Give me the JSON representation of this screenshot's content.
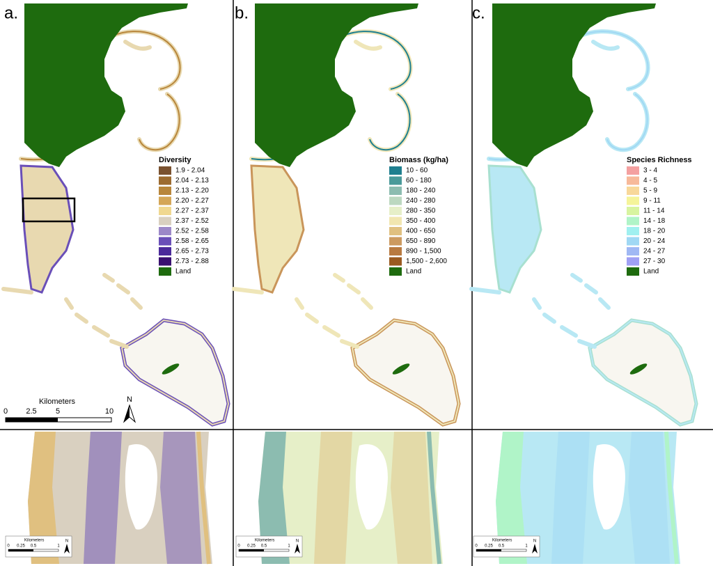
{
  "panels": [
    {
      "label": "a.",
      "legend": {
        "title": "Diversity",
        "items": [
          {
            "label": "1.9 - 2.04",
            "color": "#7a5230"
          },
          {
            "label": "2.04 - 2.13",
            "color": "#9c6b30"
          },
          {
            "label": "2.13 - 2.20",
            "color": "#b8863b"
          },
          {
            "label": "2.20 - 2.27",
            "color": "#d4a657"
          },
          {
            "label": "2.27 - 2.37",
            "color": "#f0d890"
          },
          {
            "label": "2.37 - 2.52",
            "color": "#d9d0c0"
          },
          {
            "label": "2.52 - 2.58",
            "color": "#9c88c8"
          },
          {
            "label": "2.58 - 2.65",
            "color": "#6a4fb8"
          },
          {
            "label": "2.65 - 2.73",
            "color": "#4b2a9a"
          },
          {
            "label": "2.73 - 2.88",
            "color": "#3a1070"
          },
          {
            "label": "Land",
            "color": "#1e6b0e"
          }
        ]
      }
    },
    {
      "label": "b.",
      "legend": {
        "title": "Biomass (kg/ha)",
        "items": [
          {
            "label": "10 - 60",
            "color": "#1f7f8f"
          },
          {
            "label": "60 - 180",
            "color": "#4a9a9a"
          },
          {
            "label": "180 - 240",
            "color": "#8cbcb0"
          },
          {
            "label": "240 - 280",
            "color": "#bcd8c0"
          },
          {
            "label": "280 - 350",
            "color": "#e6efc8"
          },
          {
            "label": "350 - 400",
            "color": "#f1e6b0"
          },
          {
            "label": "400 - 650",
            "color": "#e0c080"
          },
          {
            "label": "650 - 890",
            "color": "#cc9a60"
          },
          {
            "label": "890 - 1,500",
            "color": "#b87a40"
          },
          {
            "label": "1,500 - 2,600",
            "color": "#9a5a20"
          },
          {
            "label": "Land",
            "color": "#1e6b0e"
          }
        ]
      }
    },
    {
      "label": "c.",
      "legend": {
        "title": "Species Richness",
        "items": [
          {
            "label": "3 - 4",
            "color": "#f4a0a0"
          },
          {
            "label": "4 - 5",
            "color": "#f7b99a"
          },
          {
            "label": "5 - 9",
            "color": "#f8d89a"
          },
          {
            "label": "9 - 11",
            "color": "#f5f49a"
          },
          {
            "label": "11 - 14",
            "color": "#d8f4a0"
          },
          {
            "label": "14 - 18",
            "color": "#b0f4c8"
          },
          {
            "label": "18 - 20",
            "color": "#a0f0f0"
          },
          {
            "label": "20 - 24",
            "color": "#a0d8f4"
          },
          {
            "label": "24 - 27",
            "color": "#a0b8f4"
          },
          {
            "label": "27 - 30",
            "color": "#a0a0f4"
          },
          {
            "label": "Land",
            "color": "#1e6b0e"
          }
        ]
      }
    }
  ],
  "scale_bar": {
    "title": "Kilometers",
    "ticks": [
      "0",
      "2.5",
      "5",
      "10"
    ],
    "north": "N"
  },
  "inset_scale_bar": {
    "title": "Kilometers",
    "ticks": [
      "0",
      "0.25",
      "0.5",
      "1"
    ],
    "north": "N"
  }
}
